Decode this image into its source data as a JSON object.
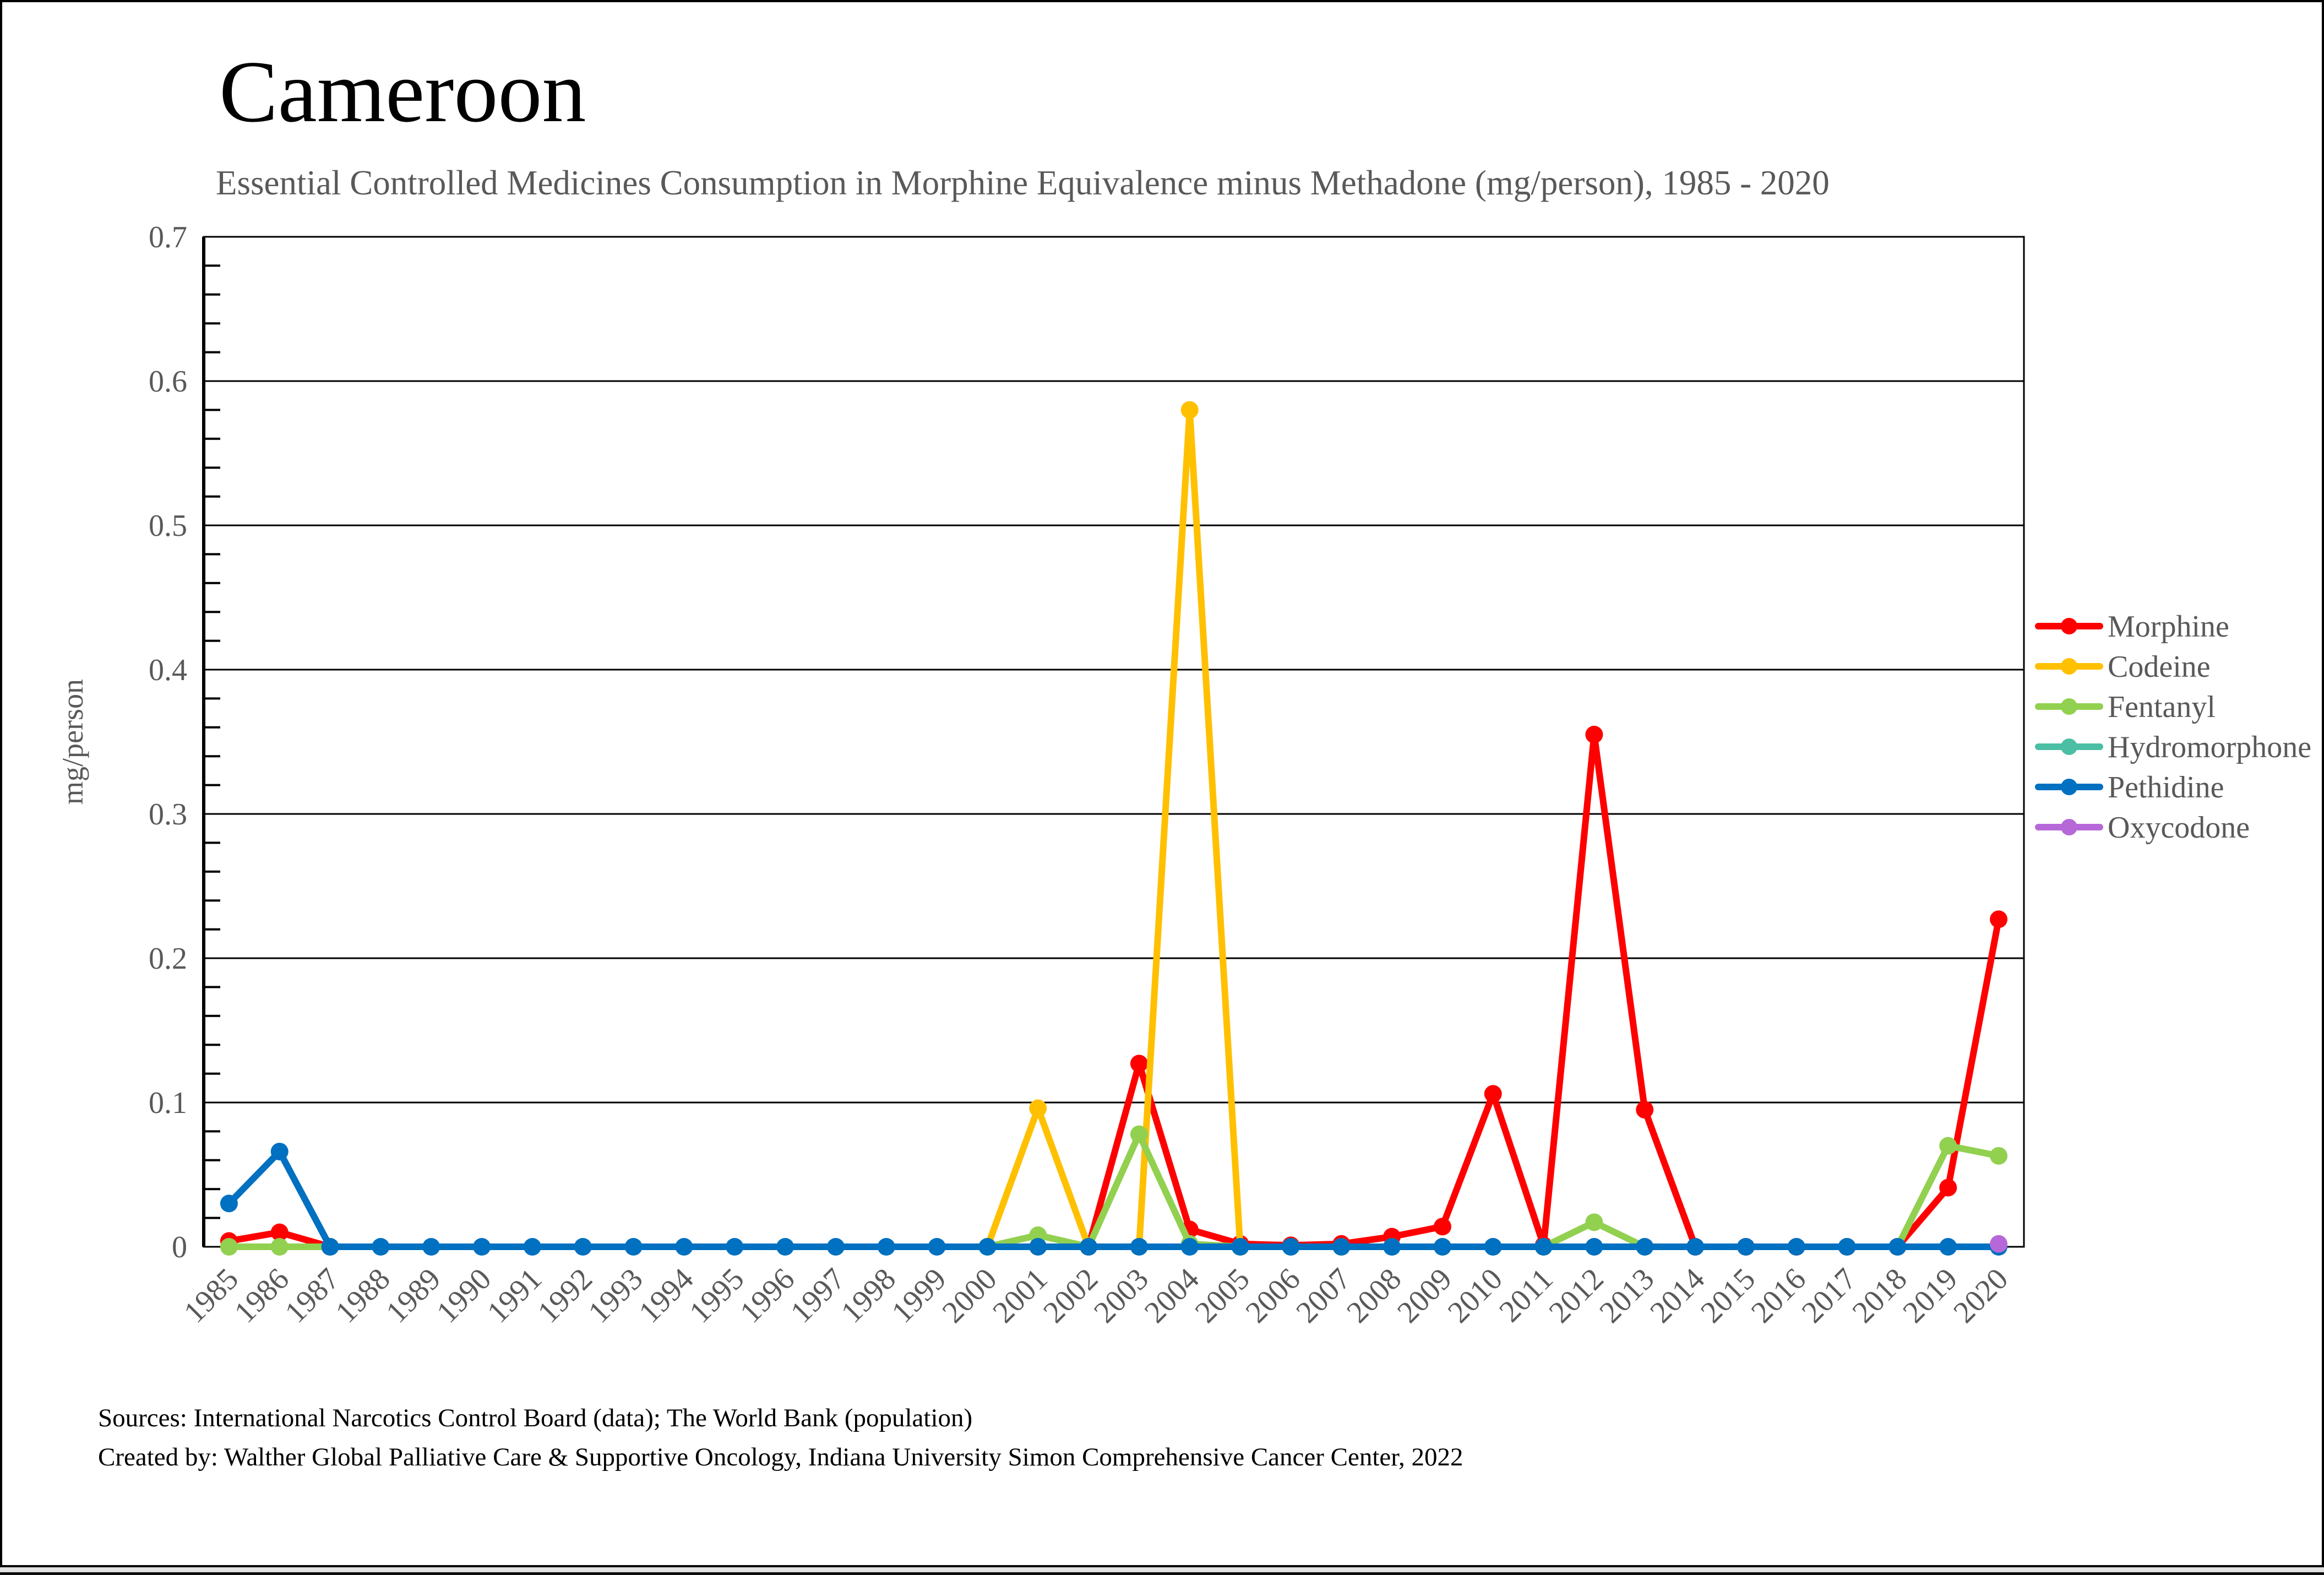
{
  "title": "Cameroon",
  "subtitle": "Essential Controlled Medicines Consumption in Morphine Equivalence minus Methadone (mg/person), 1985 - 2020",
  "footer": {
    "sources": "Sources: International Narcotics Control Board (data); The World Bank (population)",
    "created_by": "Created by: Walther Global Palliative Care & Supportive Oncology, Indiana University Simon Comprehensive Cancer Center, 2022"
  },
  "colors": {
    "text_gray": "#595959",
    "axis_black": "#000000"
  },
  "chart_data": {
    "type": "line",
    "title": "Cameroon",
    "subtitle": "Essential Controlled Medicines Consumption in Morphine Equivalence minus Methadone (mg/person), 1985 - 2020",
    "xlabel": "",
    "ylabel": "mg/person",
    "ylim": [
      0,
      0.7
    ],
    "ytick_step": 0.1,
    "yticks": [
      "0",
      "0.1",
      "0.2",
      "0.3",
      "0.4",
      "0.5",
      "0.6",
      "0.7"
    ],
    "grid": "horizontal",
    "legend_position": "right",
    "x": [
      1985,
      1986,
      1987,
      1988,
      1989,
      1990,
      1991,
      1992,
      1993,
      1994,
      1995,
      1996,
      1997,
      1998,
      1999,
      2000,
      2001,
      2002,
      2003,
      2004,
      2005,
      2006,
      2007,
      2008,
      2009,
      2010,
      2011,
      2012,
      2013,
      2014,
      2015,
      2016,
      2017,
      2018,
      2019,
      2020
    ],
    "series": [
      {
        "name": "Morphine",
        "color": "#FF0000",
        "values": [
          0.004,
          0.01,
          0,
          null,
          null,
          null,
          null,
          null,
          null,
          null,
          null,
          null,
          null,
          null,
          null,
          null,
          null,
          0,
          0.127,
          0.012,
          0.002,
          0.001,
          0.002,
          0.007,
          0.014,
          0.106,
          0.001,
          0.355,
          0.095,
          0,
          0,
          0,
          0,
          0,
          0.041,
          0.227
        ]
      },
      {
        "name": "Codeine",
        "color": "#FFC000",
        "values": [
          null,
          null,
          null,
          null,
          null,
          null,
          null,
          null,
          null,
          null,
          null,
          null,
          null,
          null,
          null,
          0,
          0.096,
          0,
          0,
          0.58,
          0,
          0,
          0,
          0,
          0,
          0,
          0,
          0,
          null,
          null,
          null,
          null,
          null,
          null,
          null,
          null
        ]
      },
      {
        "name": "Fentanyl",
        "color": "#92D050",
        "values": [
          0,
          0,
          0,
          null,
          null,
          null,
          null,
          null,
          null,
          null,
          null,
          null,
          null,
          null,
          null,
          0,
          0.008,
          0,
          0.078,
          0.002,
          0,
          0,
          0,
          0,
          0,
          0,
          0,
          0.017,
          0,
          null,
          null,
          null,
          null,
          0,
          0.07,
          0.063
        ]
      },
      {
        "name": "Hydromorphone",
        "color": "#4BBEA3",
        "values": [
          null,
          null,
          null,
          null,
          null,
          null,
          null,
          null,
          null,
          null,
          null,
          null,
          null,
          null,
          null,
          null,
          null,
          null,
          null,
          null,
          null,
          null,
          null,
          null,
          null,
          null,
          null,
          null,
          null,
          null,
          null,
          null,
          null,
          null,
          null,
          null
        ]
      },
      {
        "name": "Pethidine",
        "color": "#0070C0",
        "values": [
          0.03,
          0.066,
          0,
          0,
          0,
          0,
          0,
          0,
          0,
          0,
          0,
          0,
          0,
          0,
          0,
          0,
          0,
          0,
          0,
          0,
          0,
          0,
          0,
          0,
          0,
          0,
          0,
          0,
          0,
          0,
          0,
          0,
          0,
          0,
          0,
          0
        ]
      },
      {
        "name": "Oxycodone",
        "color": "#B768D8",
        "values": [
          null,
          null,
          null,
          null,
          null,
          null,
          null,
          null,
          null,
          null,
          null,
          null,
          null,
          null,
          null,
          null,
          null,
          null,
          null,
          null,
          null,
          null,
          null,
          null,
          null,
          null,
          null,
          null,
          null,
          null,
          null,
          null,
          null,
          null,
          null,
          0.002
        ]
      }
    ]
  }
}
